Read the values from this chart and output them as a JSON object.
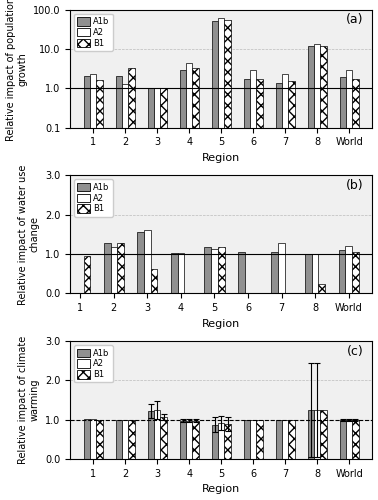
{
  "panel_a": {
    "ylabel": "Relative impact of population\ngrowth",
    "label": "(a)",
    "A1b": [
      2.0,
      2.1,
      1.02,
      3.0,
      50.0,
      1.7,
      1.4,
      12.0,
      1.9
    ],
    "A2": [
      2.3,
      1.3,
      1.02,
      4.5,
      60.0,
      3.0,
      2.3,
      13.5,
      3.0
    ],
    "B1": [
      1.6,
      3.2,
      1.02,
      3.2,
      55.0,
      1.7,
      1.5,
      12.0,
      1.7
    ]
  },
  "panel_b": {
    "ylabel": "Relative impact of water use\nchange",
    "label": "(b)",
    "A1b": [
      null,
      1.28,
      1.55,
      1.03,
      1.18,
      1.05,
      1.05,
      1.0,
      1.1
    ],
    "A2": [
      null,
      1.18,
      1.6,
      1.03,
      1.13,
      null,
      1.28,
      1.0,
      1.2
    ],
    "B1": [
      0.95,
      1.28,
      0.62,
      null,
      1.18,
      null,
      null,
      0.25,
      1.05
    ]
  },
  "panel_c": {
    "ylabel": "Relative impact of climate\nwarming",
    "label": "(c)",
    "A1b": [
      1.02,
      1.0,
      1.22,
      0.98,
      0.88,
      1.0,
      1.0,
      1.25,
      1.0
    ],
    "A2": [
      1.02,
      1.0,
      1.25,
      0.98,
      0.92,
      1.0,
      1.0,
      1.25,
      1.0
    ],
    "B1": [
      1.0,
      1.0,
      1.07,
      0.98,
      0.9,
      1.0,
      1.0,
      1.25,
      1.0
    ],
    "A1b_err": [
      0.02,
      0.02,
      0.18,
      0.03,
      0.2,
      0.02,
      0.02,
      1.2,
      0.03
    ],
    "A2_err": [
      0.02,
      0.02,
      0.22,
      0.03,
      0.18,
      0.02,
      0.02,
      1.2,
      0.03
    ],
    "B1_err": [
      0.02,
      0.02,
      0.07,
      0.03,
      0.18,
      0.02,
      0.02,
      0.0,
      0.03
    ]
  },
  "categories": [
    "1",
    "2",
    "3",
    "4",
    "5",
    "6",
    "7",
    "8",
    "World"
  ],
  "bar_width": 0.2,
  "bg_color": "#f0f0f0"
}
